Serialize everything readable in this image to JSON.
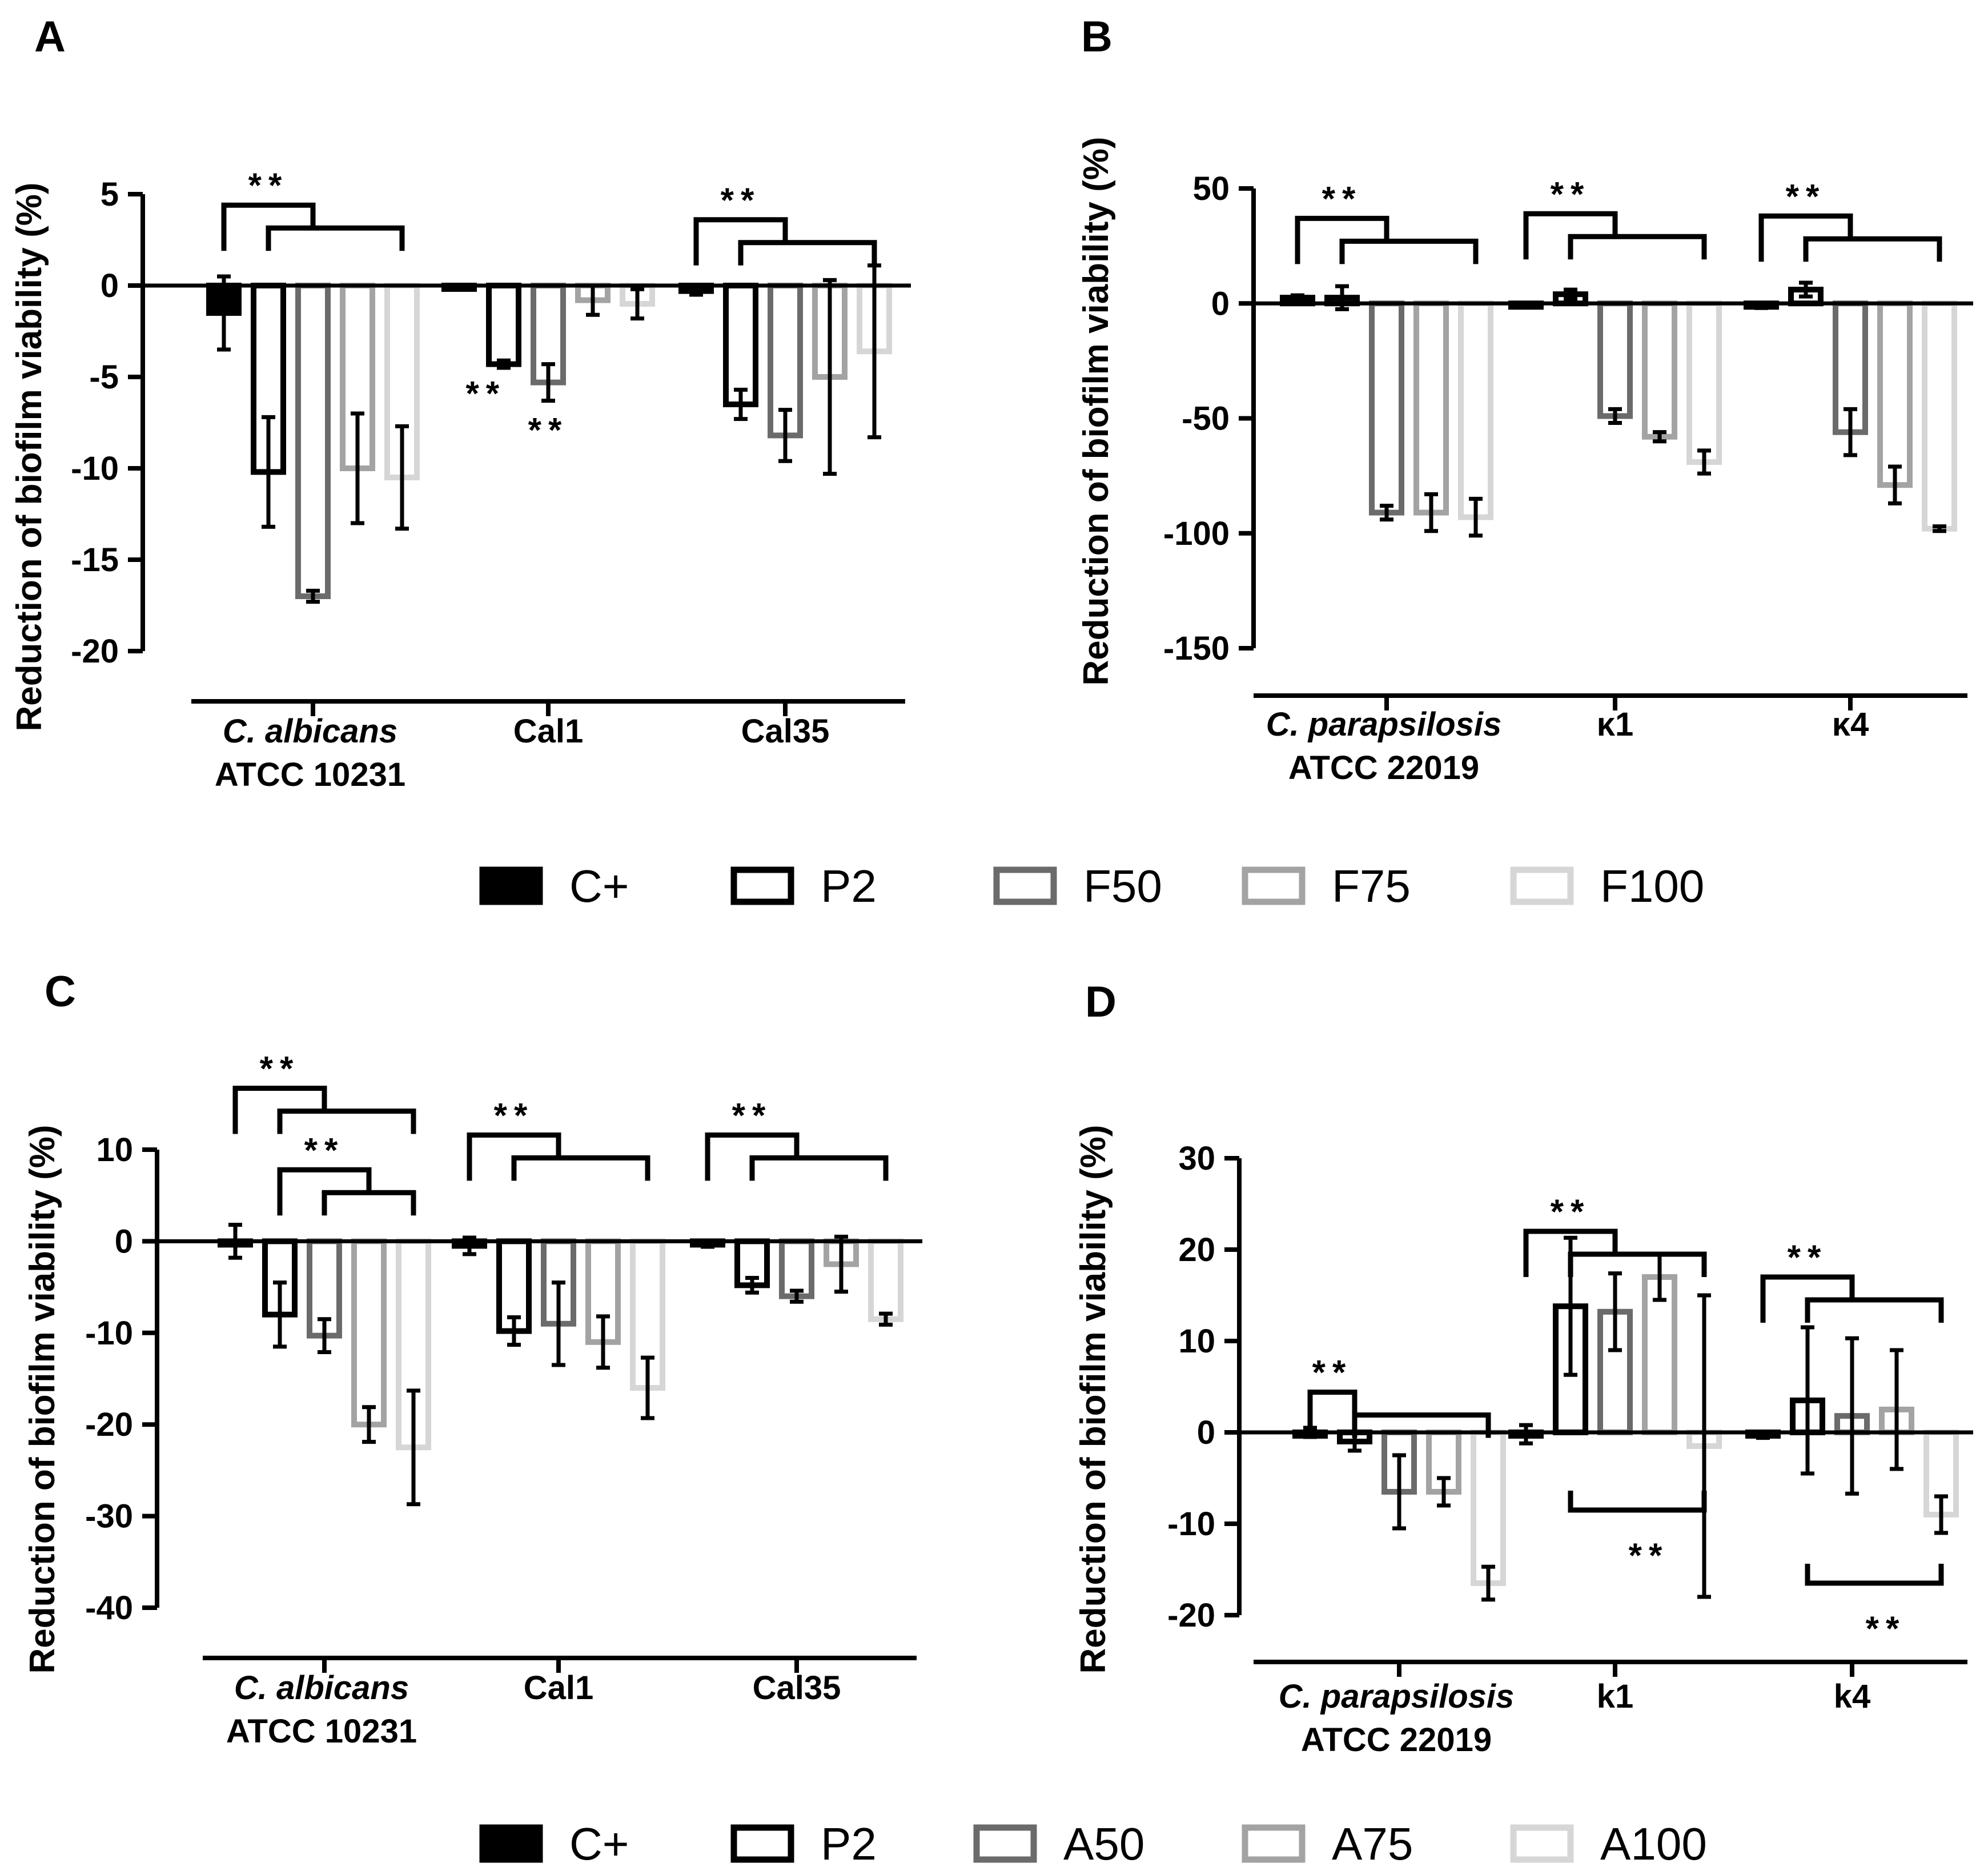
{
  "figure": {
    "y_label": "Reduction of biofilm viability (%)",
    "significance_label": "**"
  },
  "legends": [
    {
      "id": "legend-1",
      "entries": [
        {
          "label": "C+",
          "fill": "#000000",
          "stroke": "#000000"
        },
        {
          "label": "P2",
          "fill": "#ffffff",
          "stroke": "#000000"
        },
        {
          "label": "F50",
          "fill": "#ffffff",
          "stroke": "#6b6b6b"
        },
        {
          "label": "F75",
          "fill": "#ffffff",
          "stroke": "#a3a3a3"
        },
        {
          "label": "F100",
          "fill": "#ffffff",
          "stroke": "#d6d6d6"
        }
      ]
    },
    {
      "id": "legend-2",
      "entries": [
        {
          "label": "C+",
          "fill": "#000000",
          "stroke": "#000000"
        },
        {
          "label": "P2",
          "fill": "#ffffff",
          "stroke": "#000000"
        },
        {
          "label": "A50",
          "fill": "#ffffff",
          "stroke": "#6b6b6b"
        },
        {
          "label": "A75",
          "fill": "#ffffff",
          "stroke": "#a3a3a3"
        },
        {
          "label": "A100",
          "fill": "#ffffff",
          "stroke": "#d6d6d6"
        }
      ]
    }
  ],
  "chart_data": [
    {
      "panel": "A",
      "type": "bar",
      "ylabel": "Reduction of biofilm viability (%)",
      "ylim": [
        -20,
        5
      ],
      "yticks": [
        5,
        0,
        -5,
        -10,
        -15,
        -20
      ],
      "categories": [
        {
          "lines": [
            "C. albicans",
            "ATCC 10231"
          ],
          "italic_first": true
        },
        {
          "lines": [
            "Cal1"
          ],
          "italic_first": false
        },
        {
          "lines": [
            "Cal35"
          ],
          "italic_first": false
        }
      ],
      "series": [
        {
          "name": "C+",
          "values": [
            -1.5,
            0,
            -0.3
          ],
          "errors": [
            2.0,
            0,
            0.2
          ]
        },
        {
          "name": "P2",
          "values": [
            -10.2,
            -4.3,
            -6.5
          ],
          "errors": [
            3.0,
            0.2,
            0.8
          ]
        },
        {
          "name": "F50",
          "values": [
            -17.0,
            -5.3,
            -8.2
          ],
          "errors": [
            0.3,
            1.0,
            1.4
          ]
        },
        {
          "name": "F75",
          "values": [
            -10.0,
            -0.8,
            -5.0
          ],
          "errors": [
            3.0,
            0.8,
            5.3
          ]
        },
        {
          "name": "F100",
          "values": [
            -10.5,
            -1.0,
            -3.6
          ],
          "errors": [
            2.8,
            0.8,
            4.7
          ]
        }
      ],
      "brackets": [
        {
          "kind": "group",
          "cat": 0,
          "a": 0,
          "b": 2,
          "to": 4,
          "v": 4.4,
          "label": "**"
        },
        {
          "kind": "group",
          "cat": 2,
          "a": 0,
          "b": 2,
          "to": 4,
          "v": 3.6,
          "label": "**"
        }
      ],
      "annotations": [
        {
          "cat": 1,
          "series": 1,
          "v": -5.8,
          "dx": -0.4,
          "label": "**"
        },
        {
          "cat": 1,
          "series": 2,
          "v": -7.8,
          "dx": 0,
          "label": "**"
        }
      ]
    },
    {
      "panel": "B",
      "type": "bar",
      "ylabel": "Reduction of biofilm viability (%)",
      "ylim": [
        -150,
        50
      ],
      "yticks": [
        50,
        0,
        -50,
        -100,
        -150
      ],
      "categories": [
        {
          "lines": [
            "C. parapsilosis",
            "ATCC 22019"
          ],
          "italic_first": true
        },
        {
          "lines": [
            "κ1"
          ],
          "italic_first": false
        },
        {
          "lines": [
            "κ4"
          ],
          "italic_first": false
        }
      ],
      "series": [
        {
          "name": "C+",
          "values": [
            2.5,
            0,
            -1.0
          ],
          "errors": [
            1.0,
            0,
            1.0
          ]
        },
        {
          "name": "P2",
          "values": [
            2.5,
            4.0,
            6.0
          ],
          "errors": [
            5.0,
            2.0,
            3.0
          ]
        },
        {
          "name": "F50",
          "values": [
            -91.0,
            -49.0,
            -56.0
          ],
          "errors": [
            3.0,
            3.0,
            10.0
          ]
        },
        {
          "name": "F75",
          "values": [
            -91.0,
            -58.0,
            -79.0
          ],
          "errors": [
            8.0,
            2.0,
            8.0
          ]
        },
        {
          "name": "F100",
          "values": [
            -93.0,
            -69.0,
            -98.0
          ],
          "errors": [
            8.0,
            5.0,
            1.0
          ]
        }
      ],
      "brackets": [
        {
          "kind": "group",
          "cat": 0,
          "a": 0,
          "b": 2,
          "to": 4,
          "v": 37,
          "label": "**"
        },
        {
          "kind": "group",
          "cat": 1,
          "a": 0,
          "b": 2,
          "to": 4,
          "v": 39,
          "label": "**"
        },
        {
          "kind": "group",
          "cat": 2,
          "a": 0,
          "b": 2,
          "to": 4,
          "v": 38,
          "label": "**"
        }
      ],
      "annotations": []
    },
    {
      "panel": "C",
      "type": "bar",
      "ylabel": "Reduction of biofilm viability (%)",
      "ylim": [
        -40,
        10
      ],
      "yticks": [
        10,
        0,
        -10,
        -20,
        -30,
        -40
      ],
      "categories": [
        {
          "lines": [
            "C. albicans",
            "ATCC 10231"
          ],
          "italic_first": true
        },
        {
          "lines": [
            "Cal1"
          ],
          "italic_first": false
        },
        {
          "lines": [
            "Cal35"
          ],
          "italic_first": false
        }
      ],
      "series": [
        {
          "name": "C+",
          "values": [
            0.0,
            -0.5,
            -0.3
          ],
          "errors": [
            1.8,
            0.9,
            0.3
          ]
        },
        {
          "name": "P2",
          "values": [
            -8.0,
            -9.8,
            -4.8
          ],
          "errors": [
            3.5,
            1.5,
            0.8
          ]
        },
        {
          "name": "A50",
          "values": [
            -10.3,
            -9.0,
            -6.0
          ],
          "errors": [
            1.8,
            4.5,
            0.6
          ]
        },
        {
          "name": "A75",
          "values": [
            -20.0,
            -11.0,
            -2.5
          ],
          "errors": [
            1.9,
            2.8,
            3.0
          ]
        },
        {
          "name": "A100",
          "values": [
            -22.5,
            -16.0,
            -8.5
          ],
          "errors": [
            6.2,
            3.3,
            0.6
          ]
        }
      ],
      "brackets": [
        {
          "kind": "group",
          "cat": 0,
          "a": 0,
          "b": 2,
          "to": 4,
          "v": 16.7,
          "label": "**"
        },
        {
          "kind": "group",
          "cat": 0,
          "a": 1,
          "b": 3,
          "to": 4,
          "v": 7.8,
          "label": "**"
        },
        {
          "kind": "group",
          "cat": 1,
          "a": 0,
          "b": 2,
          "to": 4,
          "v": 11.6,
          "label": "**"
        },
        {
          "kind": "group",
          "cat": 2,
          "a": 0,
          "b": 2,
          "to": 4,
          "v": 11.6,
          "label": "**"
        }
      ],
      "annotations": []
    },
    {
      "panel": "D",
      "type": "bar",
      "ylabel": "Reduction of biofilm viability (%)",
      "ylim": [
        -20,
        30
      ],
      "yticks": [
        30,
        20,
        10,
        0,
        -10,
        -20
      ],
      "categories": [
        {
          "lines": [
            "C. parapsilosis",
            "ATCC 22019"
          ],
          "italic_first": true
        },
        {
          "lines": [
            "k1"
          ],
          "italic_first": false
        },
        {
          "lines": [
            "k4"
          ],
          "italic_first": false
        }
      ],
      "series": [
        {
          "name": "C+",
          "values": [
            0.0,
            -0.2,
            -0.3
          ],
          "errors": [
            0.5,
            1.0,
            0.3
          ]
        },
        {
          "name": "P2",
          "values": [
            -1.0,
            13.8,
            3.5
          ],
          "errors": [
            1.0,
            7.5,
            8.0
          ]
        },
        {
          "name": "A50",
          "values": [
            -6.5,
            13.2,
            1.8
          ],
          "errors": [
            4.0,
            4.2,
            8.5
          ]
        },
        {
          "name": "A75",
          "values": [
            -6.5,
            17.0,
            2.5
          ],
          "errors": [
            1.5,
            2.5,
            6.5
          ]
        },
        {
          "name": "A100",
          "values": [
            -16.5,
            -1.5,
            -9.0
          ],
          "errors": [
            1.8,
            16.5,
            2.0
          ]
        }
      ],
      "brackets": [
        {
          "kind": "group",
          "cat": 0,
          "a": 0,
          "b": 1,
          "to": 4,
          "v": 4.4,
          "label": "**"
        },
        {
          "kind": "group",
          "cat": 1,
          "a": 0,
          "b": 2,
          "to": 4,
          "v": 22.0,
          "label": "**"
        },
        {
          "kind": "group",
          "cat": 2,
          "a": 0,
          "b": 2,
          "to": 4,
          "v": 17.0,
          "label": "**"
        },
        {
          "kind": "below",
          "cat": 1,
          "a": 1,
          "b": 4,
          "v": -8.5,
          "label": "**"
        },
        {
          "kind": "below",
          "cat": 2,
          "a": 1,
          "b": 4,
          "v": -16.5,
          "label": "**"
        }
      ],
      "annotations": []
    }
  ]
}
